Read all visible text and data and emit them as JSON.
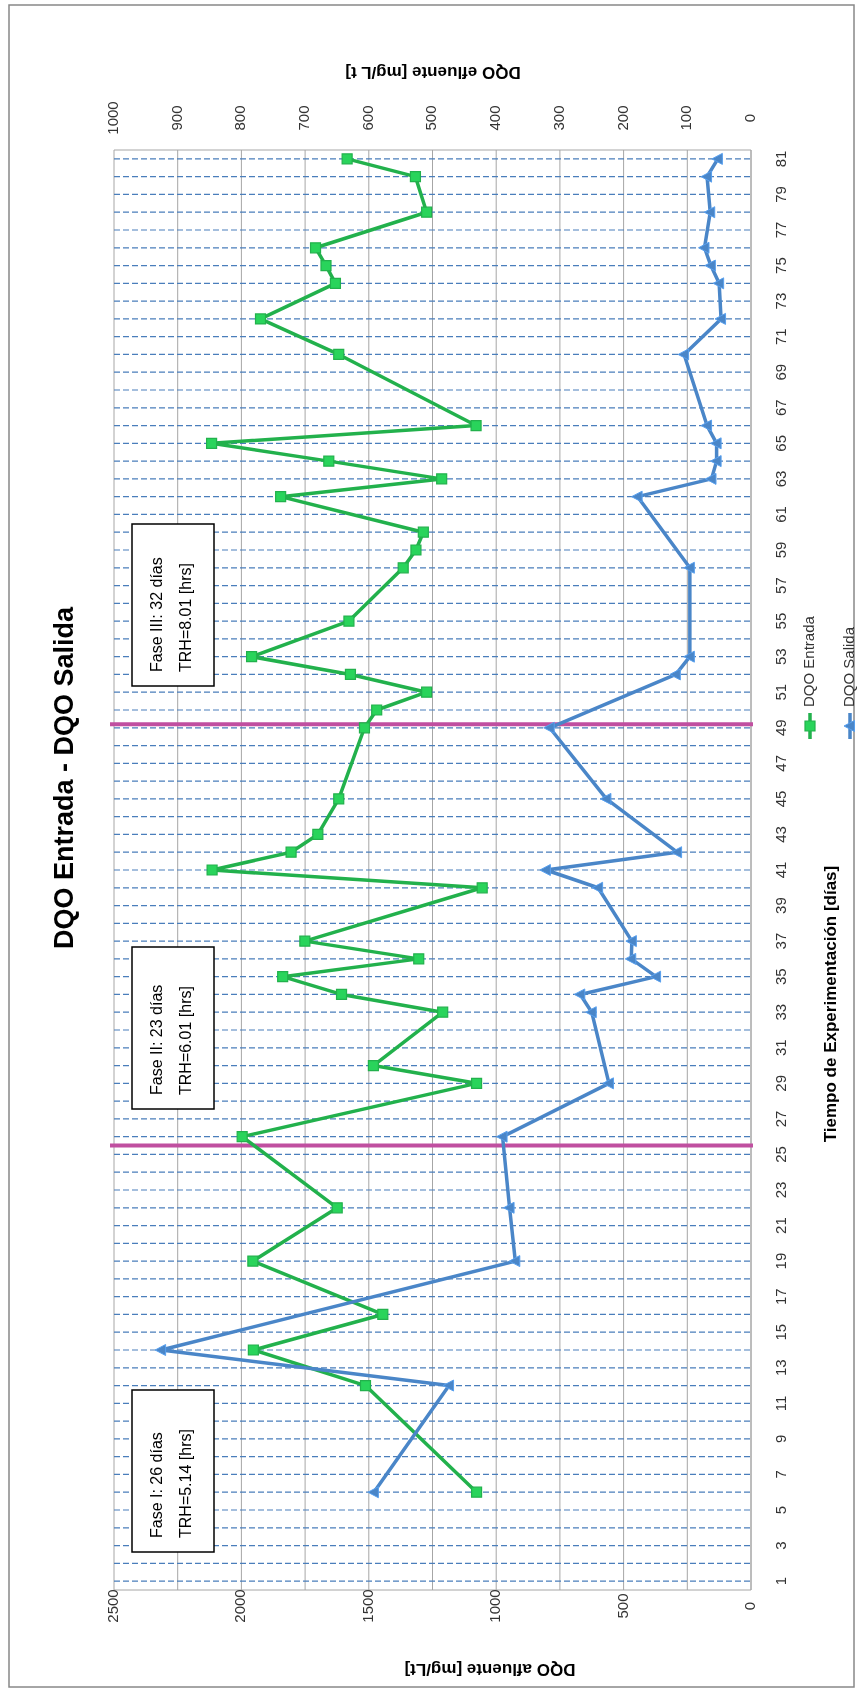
{
  "chart_data": {
    "type": "line",
    "title": "DQO Entrada - DQO Salida",
    "ylabel": "Tiempo de Experimentación [días]",
    "xlabel": "DQO afluente [mg/Lt]",
    "x2label": "DQO efluente [mg/L t]",
    "annotations": [
      "Fase I: 26 días\nTRH=5.14 [hrs]",
      "Fase II: 23 días\nTRH=6.01 [hrs]",
      "Fase III: 32 días\nTRH=8.01 [hrs]"
    ],
    "ylim": [
      0.5,
      81.5
    ],
    "yticks": [
      1,
      {
        "value": 2,
        "label": null
      },
      3,
      {
        "value": 4,
        "label": null
      },
      5,
      {
        "value": 6,
        "label": null
      },
      7,
      {
        "value": 8,
        "label": null
      },
      9,
      {
        "value": 10,
        "label": null
      },
      11,
      {
        "value": 12,
        "label": null
      },
      13,
      {
        "value": 14,
        "label": null
      },
      15,
      {
        "value": 16,
        "label": null
      },
      17,
      {
        "value": 18,
        "label": null
      },
      19,
      {
        "value": 20,
        "label": null
      },
      21,
      {
        "value": 22,
        "label": null
      },
      23,
      {
        "value": 24,
        "label": null
      },
      25,
      {
        "value": 26,
        "label": null
      },
      27,
      {
        "value": 28,
        "label": null
      },
      29,
      {
        "value": 30,
        "label": null
      },
      31,
      {
        "value": 32,
        "label": null
      },
      33,
      {
        "value": 34,
        "label": null
      },
      35,
      {
        "value": 36,
        "label": null
      },
      37,
      {
        "value": 38,
        "label": null
      },
      39,
      {
        "value": 40,
        "label": null
      },
      41,
      {
        "value": 42,
        "label": null
      },
      43,
      {
        "value": 44,
        "label": null
      },
      45,
      {
        "value": 46,
        "label": null
      },
      47,
      {
        "value": 48,
        "label": null
      },
      49,
      {
        "value": 50,
        "label": null
      },
      51,
      {
        "value": 52,
        "label": null
      },
      53,
      {
        "value": 54,
        "label": null
      },
      55,
      {
        "value": 56,
        "label": null
      },
      57,
      {
        "value": 58,
        "label": null
      },
      59,
      {
        "value": 60,
        "label": null
      },
      61,
      {
        "value": 62,
        "label": null
      },
      63,
      {
        "value": 64,
        "label": null
      },
      65,
      {
        "value": 66,
        "label": null
      },
      67,
      {
        "value": 68,
        "label": null
      },
      69,
      {
        "value": 70,
        "label": null
      },
      71,
      {
        "value": 72,
        "label": null
      },
      73,
      {
        "value": 74,
        "label": null
      },
      75,
      {
        "value": 76,
        "label": null
      },
      77,
      {
        "value": 78,
        "label": null
      },
      79,
      {
        "value": 80,
        "label": null
      },
      81
    ],
    "xlim": [
      2500,
      0
    ],
    "xticks": [
      0,
      500,
      1000,
      1500,
      2000,
      2500
    ],
    "x2lim": [
      1000,
      0
    ],
    "x2ticks": [
      0,
      100,
      200,
      300,
      400,
      500,
      600,
      700,
      800,
      900,
      1000
    ],
    "grid": true,
    "legend": "right",
    "line_style": "solid",
    "ref_lines": [
      {
        "axis": "y",
        "value": 25.5,
        "color": "#c04fa0"
      },
      {
        "axis": "y",
        "value": 49.2,
        "color": "#c04fa0"
      }
    ],
    "series": [
      {
        "name": "DQO Entrada",
        "color": "#22b14c",
        "marker": "square",
        "x": [
          1077,
          1513,
          1953,
          1445,
          1955,
          1624,
          1997,
          1077,
          1482,
          1210,
          1607,
          1838,
          1304,
          1751,
          1055,
          2115,
          1805,
          1700,
          1618,
          1517,
          1469,
          1273,
          1572,
          1960,
          1578,
          1365,
          1315,
          1286,
          1846,
          1214,
          1657,
          2117,
          1079,
          1618,
          1925,
          1631,
          1668,
          1709,
          1273,
          1317,
          1585
        ],
        "values": [
          6,
          12,
          14,
          16,
          19,
          22,
          26,
          29,
          30,
          33,
          34,
          35,
          36,
          37,
          40,
          41,
          42,
          43,
          45,
          49,
          50,
          51,
          52,
          53,
          55,
          58,
          59,
          60,
          62,
          63,
          64,
          65,
          66,
          70,
          72,
          74,
          75,
          76,
          78,
          80,
          81
        ]
      },
      {
        "name": "DQO Salida",
        "color": "#4a86c8",
        "marker": "triangle",
        "axis": "x2",
        "x": [
          592,
          474,
          926,
          370,
          379,
          390,
          223,
          250,
          268,
          149,
          188,
          187,
          240,
          322,
          116,
          227,
          316,
          118,
          96,
          96,
          178,
          62,
          54,
          54,
          69,
          105,
          47,
          50,
          63,
          73,
          64,
          69,
          52
        ],
        "values": [
          6,
          12,
          14,
          19,
          22,
          26,
          29,
          33,
          34,
          35,
          36,
          37,
          40,
          41,
          42,
          45,
          49,
          52,
          53,
          58,
          62,
          63,
          64,
          65,
          66,
          70,
          72,
          74,
          75,
          76,
          78,
          80,
          81
        ]
      }
    ]
  }
}
